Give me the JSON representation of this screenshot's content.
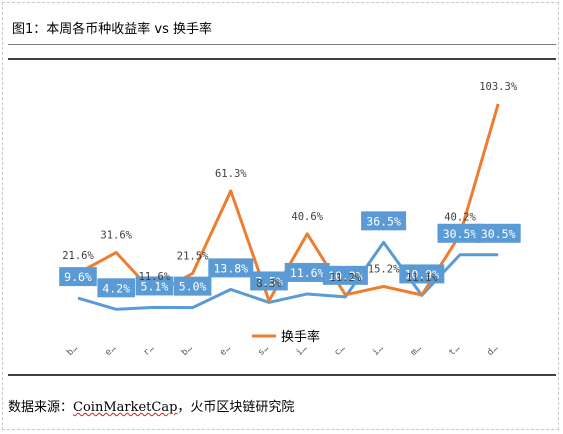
{
  "header": {
    "title": "图1：本周各币种收益率 vs 换手率"
  },
  "footer": {
    "source_prefix": "数据来源：",
    "source_name": "CoinMarketCap",
    "source_suffix": "，火币区块链研究院"
  },
  "colors": {
    "return_line": "#5b9bd5",
    "turnover_line": "#ed7d31",
    "label_box": "#5b9bd5",
    "label_text_on_box": "#ffffff",
    "tick_text": "#595959"
  },
  "chart_data": {
    "type": "line",
    "categories": [
      "b…",
      "e…",
      "r…",
      "b…",
      "e…",
      "s…",
      "i…",
      "c…",
      "i…",
      "m…",
      "t…",
      "d…"
    ],
    "ylim": [
      0,
      110
    ],
    "legend": {
      "placement": "bottom",
      "entries": [
        "换手率"
      ]
    },
    "series": [
      {
        "key": "return",
        "values": [
          9.6,
          4.2,
          5.1,
          5.0,
          13.8,
          7.5,
          11.6,
          10.2,
          36.5,
          10.9,
          30.5,
          30.5
        ],
        "labels": [
          "9.6%",
          "4.2%",
          "5.1%",
          "5.0%",
          "13.8%",
          "7.5%",
          "11.6%",
          "10.2%",
          "36.5%",
          "10.9%",
          "30.5%",
          "30.5%"
        ]
      },
      {
        "key": "turnover",
        "name": "换手率",
        "values": [
          21.6,
          31.6,
          11.6,
          21.5,
          61.3,
          8.3,
          40.6,
          11.2,
          15.2,
          11.1,
          40.2,
          103.3
        ],
        "labels": [
          "21.6%",
          "31.6%",
          "11.6%",
          "21.5%",
          "61.3%",
          "8.3%",
          "40.6%",
          "11.2%",
          "15.2%",
          "11.1%",
          "40.2%",
          "103.3%"
        ]
      }
    ]
  }
}
